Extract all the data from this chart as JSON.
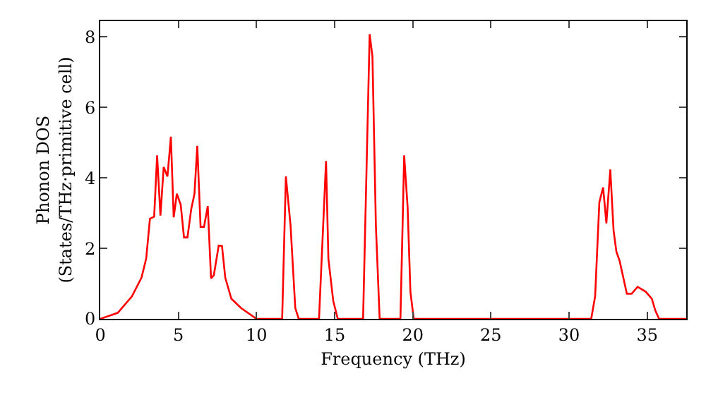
{
  "chart_data": {
    "type": "line",
    "xlabel": "Frequency (THz)",
    "ylabel": "Phonon DOS\n(States/THz·primitive cell)",
    "x": [
      0,
      1.12,
      2.03,
      2.64,
      2.94,
      3.18,
      3.45,
      3.64,
      3.85,
      4.06,
      4.3,
      4.52,
      4.7,
      4.9,
      5.15,
      5.36,
      5.58,
      5.82,
      6.03,
      6.21,
      6.42,
      6.64,
      6.88,
      7.09,
      7.27,
      7.58,
      7.79,
      8,
      8.39,
      9,
      10,
      11.64,
      11.88,
      12.18,
      12.48,
      12.7,
      14,
      14.45,
      14.6,
      14.91,
      15.2,
      16.82,
      17.24,
      17.42,
      17.64,
      17.88,
      19.21,
      19.45,
      19.67,
      19.85,
      20.06,
      31.42,
      31.67,
      31.94,
      32.18,
      32.39,
      32.64,
      32.85,
      33.03,
      33.24,
      33.7,
      34,
      34.39,
      34.91,
      35.3,
      35.52,
      35.76,
      37.5
    ],
    "series": [
      {
        "color": "#ff0000",
        "values": [
          0,
          0.17,
          0.64,
          1.17,
          1.71,
          2.84,
          2.9,
          4.64,
          2.93,
          4.31,
          4.04,
          5.17,
          2.88,
          3.55,
          3.24,
          2.31,
          2.31,
          3.11,
          3.55,
          4.91,
          2.61,
          2.61,
          3.2,
          1.15,
          1.24,
          2.08,
          2.07,
          1.17,
          0.57,
          0.31,
          0,
          0,
          4.04,
          2.64,
          0.31,
          0,
          0,
          4.48,
          1.71,
          0.51,
          0,
          0,
          8.08,
          7.44,
          2.64,
          0,
          0,
          4.64,
          3.17,
          0.77,
          0,
          0,
          0.64,
          3.31,
          3.73,
          2.71,
          4.24,
          2.51,
          1.91,
          1.64,
          0.71,
          0.71,
          0.91,
          0.77,
          0.57,
          0.24,
          0,
          0
        ]
      }
    ],
    "xlim": [
      0,
      37.5
    ],
    "xticks": [
      0,
      5,
      10,
      15,
      20,
      25,
      30,
      35
    ],
    "ylim": [
      0,
      8.45
    ],
    "yticks": [
      0,
      2,
      4,
      6,
      8
    ],
    "grid": false,
    "marker": "none",
    "line_style": "solid"
  }
}
